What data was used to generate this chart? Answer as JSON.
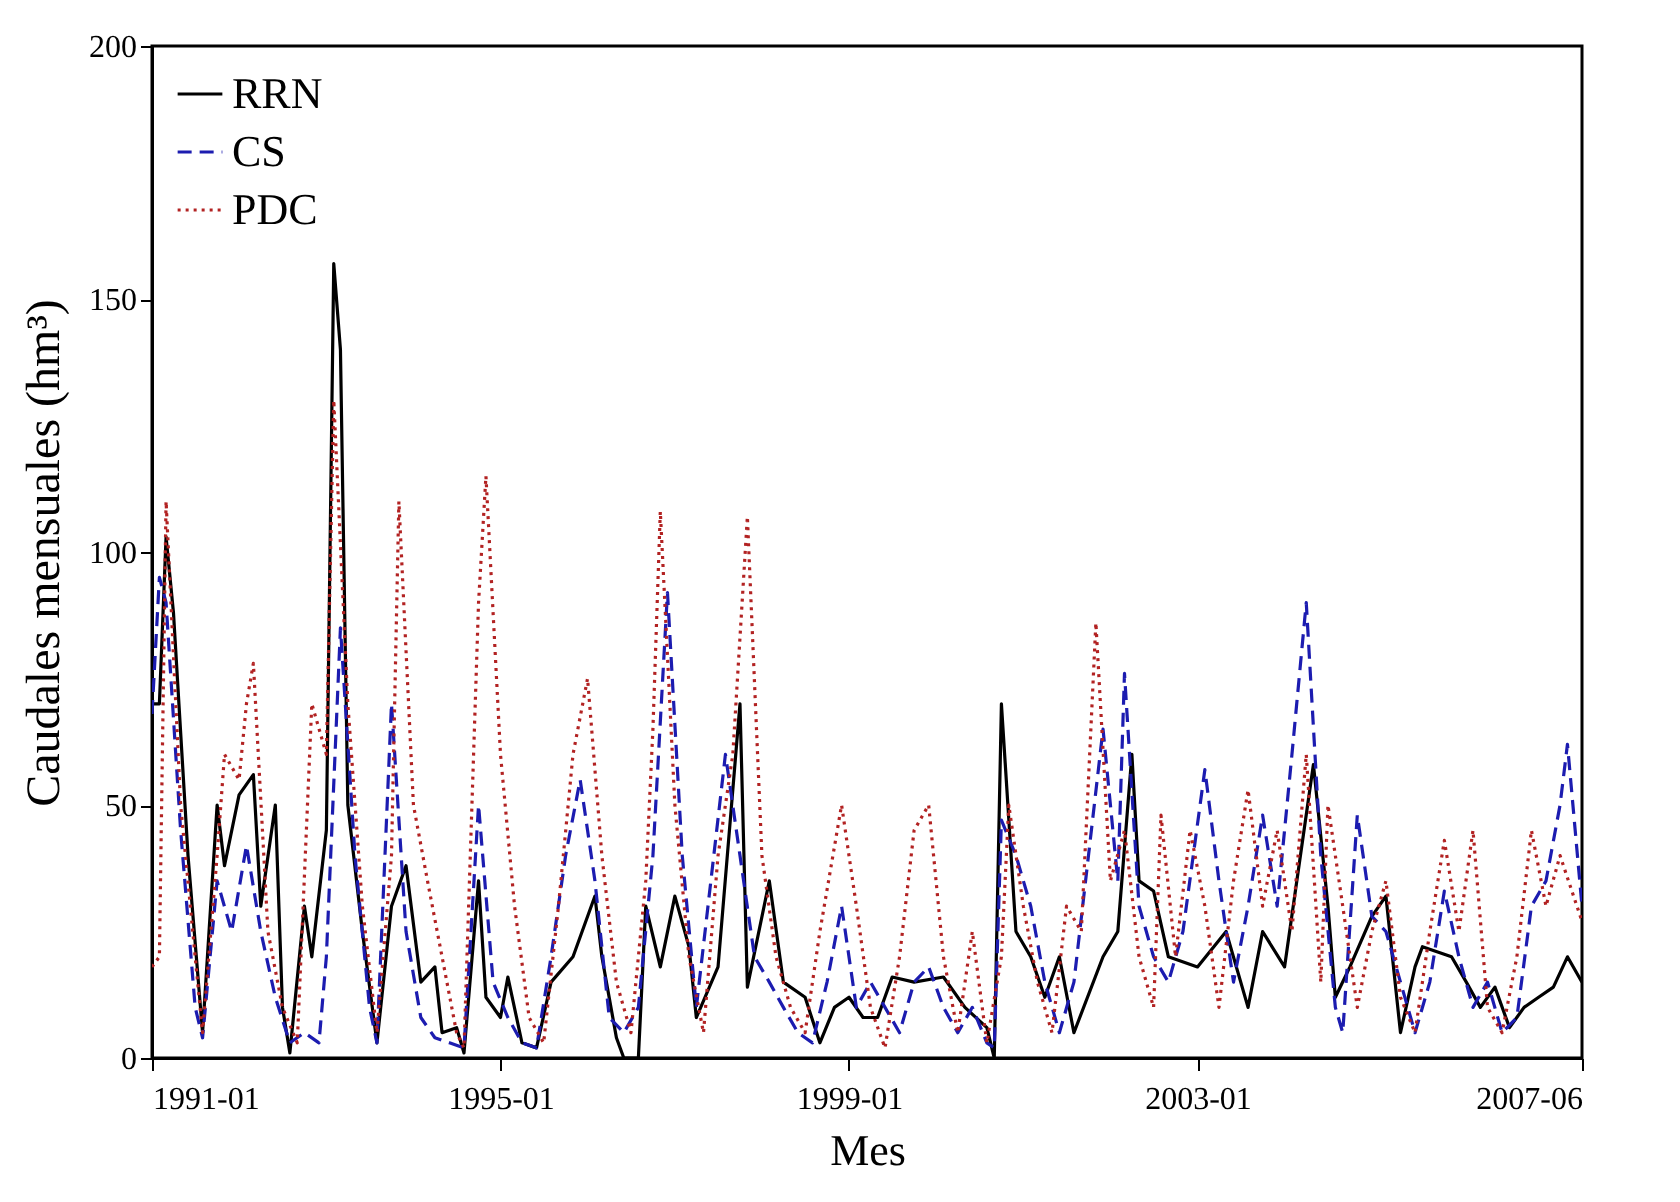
{
  "chart_data": {
    "type": "line",
    "xlabel": "Mes",
    "ylabel": "Caudales mensuales (hm³)",
    "ylim": [
      0,
      200
    ],
    "yticks": [
      0,
      50,
      100,
      150,
      200
    ],
    "xlim": [
      "1991-01",
      "2007-06"
    ],
    "xticks": [
      "1991-01",
      "1995-01",
      "1999-01",
      "2003-01",
      "2007-06"
    ],
    "grid": false,
    "legend": "top left",
    "series": [
      {
        "name": "RRN",
        "color": "#000000",
        "line_style": "solid",
        "x": [
          "1991-01",
          "1991-02",
          "1991-03",
          "1991-04",
          "1991-06",
          "1991-08",
          "1991-10",
          "1991-11",
          "1992-01",
          "1992-03",
          "1992-04",
          "1992-06",
          "1992-07",
          "1992-08",
          "1992-10",
          "1992-11",
          "1993-01",
          "1993-02",
          "1993-03",
          "1993-04",
          "1993-06",
          "1993-08",
          "1993-10",
          "1993-12",
          "1994-02",
          "1994-04",
          "1994-05",
          "1994-07",
          "1994-08",
          "1994-10",
          "1994-11",
          "1995-01",
          "1995-02",
          "1995-04",
          "1995-06",
          "1995-08",
          "1995-11",
          "1996-02",
          "1996-03",
          "1996-05",
          "1996-06",
          "1996-08",
          "1996-09",
          "1996-11",
          "1997-01",
          "1997-03",
          "1997-04",
          "1997-07",
          "1997-10",
          "1997-11",
          "1998-02",
          "1998-04",
          "1998-07",
          "1998-09",
          "1998-11",
          "1999-01",
          "1999-03",
          "1999-05",
          "1999-07",
          "1999-10",
          "2000-02",
          "2000-05",
          "2000-08",
          "2000-09",
          "2000-10",
          "2000-12",
          "2001-02",
          "2001-04",
          "2001-06",
          "2001-08",
          "2001-12",
          "2002-02",
          "2002-04",
          "2002-05",
          "2002-07",
          "2002-09",
          "2003-01",
          "2003-05",
          "2003-08",
          "2003-10",
          "2004-01",
          "2004-05",
          "2004-07",
          "2004-08",
          "2004-10",
          "2005-01",
          "2005-03",
          "2005-05",
          "2005-07",
          "2005-08",
          "2005-12",
          "2006-02",
          "2006-04",
          "2006-06",
          "2006-08",
          "2006-10",
          "2006-12",
          "2007-02",
          "2007-04",
          "2007-06"
        ],
        "values": [
          70,
          70,
          103,
          88,
          40,
          5,
          50,
          38,
          52,
          56,
          30,
          50,
          10,
          1,
          30,
          20,
          45,
          157,
          140,
          50,
          25,
          3,
          30,
          38,
          15,
          18,
          5,
          6,
          1,
          35,
          12,
          8,
          16,
          3,
          2,
          15,
          20,
          32,
          20,
          4,
          0,
          0,
          30,
          18,
          32,
          22,
          8,
          18,
          70,
          14,
          35,
          15,
          12,
          3,
          10,
          12,
          8,
          8,
          16,
          15,
          16,
          10,
          6,
          0,
          70,
          25,
          20,
          12,
          20,
          5,
          20,
          25,
          60,
          35,
          33,
          20,
          18,
          25,
          10,
          25,
          18,
          58,
          30,
          12,
          18,
          28,
          32,
          5,
          18,
          22,
          20,
          15,
          10,
          14,
          6,
          10,
          12,
          14,
          20,
          15
        ]
      },
      {
        "name": "CS",
        "color": "#1c1cb0",
        "line_style": "dashed",
        "x": [
          "1991-01",
          "1991-02",
          "1991-03",
          "1991-05",
          "1991-07",
          "1991-08",
          "1991-10",
          "1991-12",
          "1992-02",
          "1992-04",
          "1992-06",
          "1992-08",
          "1992-10",
          "1992-12",
          "1993-01",
          "1993-03",
          "1993-05",
          "1993-07",
          "1993-08",
          "1993-10",
          "1993-12",
          "1994-02",
          "1994-04",
          "1994-06",
          "1994-08",
          "1994-10",
          "1994-12",
          "1995-02",
          "1995-04",
          "1995-06",
          "1995-08",
          "1995-10",
          "1995-12",
          "1996-02",
          "1996-04",
          "1996-06",
          "1996-08",
          "1996-10",
          "1996-12",
          "1997-02",
          "1997-04",
          "1997-06",
          "1997-08",
          "1997-10",
          "1997-12",
          "1998-02",
          "1998-04",
          "1998-06",
          "1998-08",
          "1998-10",
          "1998-12",
          "1999-02",
          "1999-04",
          "1999-06",
          "1999-08",
          "1999-10",
          "1999-12",
          "2000-02",
          "2000-04",
          "2000-06",
          "2000-08",
          "2000-09",
          "2000-10",
          "2000-12",
          "2001-02",
          "2001-04",
          "2001-06",
          "2001-08",
          "2001-10",
          "2001-12",
          "2002-02",
          "2002-03",
          "2002-05",
          "2002-07",
          "2002-09",
          "2002-11",
          "2003-02",
          "2003-04",
          "2003-06",
          "2003-08",
          "2003-10",
          "2003-12",
          "2004-02",
          "2004-04",
          "2004-06",
          "2004-08",
          "2004-09",
          "2004-11",
          "2005-01",
          "2005-03",
          "2005-05",
          "2005-07",
          "2005-09",
          "2005-11",
          "2006-01",
          "2006-03",
          "2006-05",
          "2006-07",
          "2006-09",
          "2006-11",
          "2007-01",
          "2007-03",
          "2007-04",
          "2007-06"
        ],
        "values": [
          68,
          95,
          90,
          45,
          10,
          4,
          35,
          25,
          42,
          25,
          12,
          3,
          5,
          3,
          20,
          85,
          40,
          10,
          3,
          70,
          25,
          8,
          4,
          3,
          2,
          50,
          15,
          8,
          3,
          2,
          20,
          40,
          55,
          35,
          8,
          5,
          10,
          40,
          92,
          40,
          10,
          35,
          60,
          40,
          20,
          15,
          10,
          5,
          3,
          15,
          30,
          10,
          15,
          10,
          5,
          15,
          18,
          10,
          5,
          10,
          3,
          2,
          47,
          40,
          30,
          15,
          5,
          15,
          40,
          65,
          35,
          76,
          30,
          20,
          15,
          25,
          57,
          35,
          15,
          30,
          48,
          30,
          60,
          90,
          40,
          10,
          5,
          48,
          28,
          25,
          15,
          5,
          15,
          33,
          20,
          10,
          15,
          5,
          8,
          30,
          35,
          50,
          62,
          30
        ]
      },
      {
        "name": "PDC",
        "color": "#b22222",
        "line_style": "dotted",
        "x": [
          "1991-01",
          "1991-02",
          "1991-03",
          "1991-05",
          "1991-07",
          "1991-08",
          "1991-10",
          "1991-11",
          "1992-01",
          "1992-02",
          "1992-03",
          "1992-05",
          "1992-07",
          "1992-09",
          "1992-11",
          "1993-01",
          "1993-02",
          "1993-04",
          "1993-06",
          "1993-08",
          "1993-10",
          "1993-11",
          "1994-01",
          "1994-03",
          "1994-05",
          "1994-07",
          "1994-08",
          "1994-10",
          "1994-11",
          "1995-01",
          "1995-03",
          "1995-05",
          "1995-07",
          "1995-09",
          "1995-11",
          "1996-01",
          "1996-03",
          "1996-05",
          "1996-07",
          "1996-09",
          "1996-10",
          "1996-11",
          "1997-01",
          "1997-03",
          "1997-05",
          "1997-07",
          "1997-09",
          "1997-11",
          "1998-01",
          "1998-03",
          "1998-05",
          "1998-07",
          "1998-09",
          "1998-12",
          "1999-02",
          "1999-04",
          "1999-06",
          "1999-08",
          "1999-10",
          "1999-12",
          "2000-02",
          "2000-04",
          "2000-06",
          "2000-08",
          "2000-10",
          "2000-11",
          "2001-01",
          "2001-03",
          "2001-05",
          "2001-07",
          "2001-09",
          "2001-11",
          "2002-01",
          "2002-03",
          "2002-05",
          "2002-07",
          "2002-08",
          "2002-10",
          "2002-12",
          "2003-02",
          "2003-04",
          "2003-06",
          "2003-08",
          "2003-10",
          "2003-12",
          "2004-02",
          "2004-04",
          "2004-06",
          "2004-07",
          "2004-09",
          "2004-11",
          "2005-01",
          "2005-03",
          "2005-05",
          "2005-07",
          "2005-09",
          "2005-11",
          "2006-01",
          "2006-03",
          "2006-05",
          "2006-07",
          "2006-09",
          "2006-11",
          "2007-01",
          "2007-03",
          "2007-06"
        ],
        "values": [
          18,
          20,
          110,
          50,
          20,
          5,
          40,
          60,
          55,
          70,
          78,
          25,
          10,
          3,
          70,
          60,
          130,
          70,
          30,
          5,
          40,
          110,
          50,
          35,
          20,
          5,
          2,
          90,
          115,
          60,
          30,
          8,
          3,
          30,
          60,
          75,
          40,
          15,
          5,
          35,
          65,
          108,
          50,
          20,
          5,
          40,
          60,
          107,
          40,
          20,
          10,
          5,
          25,
          50,
          30,
          10,
          2,
          20,
          45,
          50,
          20,
          5,
          25,
          3,
          20,
          50,
          30,
          15,
          5,
          30,
          25,
          86,
          35,
          45,
          20,
          10,
          48,
          20,
          45,
          30,
          10,
          35,
          53,
          30,
          45,
          25,
          60,
          15,
          50,
          30,
          10,
          25,
          35,
          12,
          5,
          25,
          43,
          25,
          45,
          10,
          5,
          20,
          45,
          30,
          40,
          27
        ]
      }
    ]
  }
}
